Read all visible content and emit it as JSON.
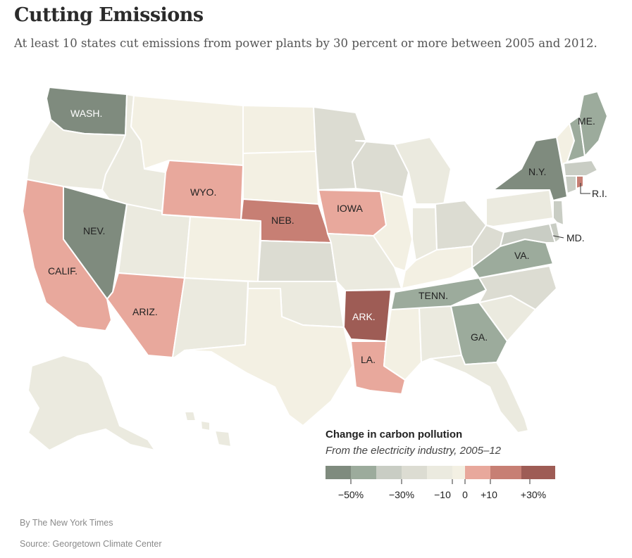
{
  "title": "Cutting Emissions",
  "subtitle": "At least 10 states cut emissions from power plants by 30 percent or more between 2005 and 2012.",
  "colors": {
    "bin_1": "#7f8b7e",
    "bin_2": "#9cab9c",
    "bin_3": "#c9cdc4",
    "bin_4": "#dcdcd2",
    "bin_5": "#ebeadf",
    "bin_6": "#f3f0e3",
    "bin_7": "#e8a89c",
    "bin_8": "#c77f74",
    "bin_9": "#9e5c55"
  },
  "state_labels": {
    "wash": "WASH.",
    "nev": "NEV.",
    "calif": "CALIF.",
    "ariz": "ARIZ.",
    "wyo": "WYO.",
    "neb": "NEB.",
    "iowa": "IOWA",
    "ark": "ARK.",
    "la": "LA.",
    "tenn": "TENN.",
    "ga": "GA.",
    "va": "VA.",
    "md": "MD.",
    "ny": "N.Y.",
    "me": "ME.",
    "ri": "R.I."
  },
  "legend": {
    "title": "Change in carbon pollution",
    "subtitle": "From the electricity industry, 2005–12",
    "ticks": [
      "−50%",
      "−30%",
      "−10",
      "0",
      "+10",
      "+30%"
    ]
  },
  "byline": "By The New York Times",
  "source": "Source: Georgetown Climate Center"
}
